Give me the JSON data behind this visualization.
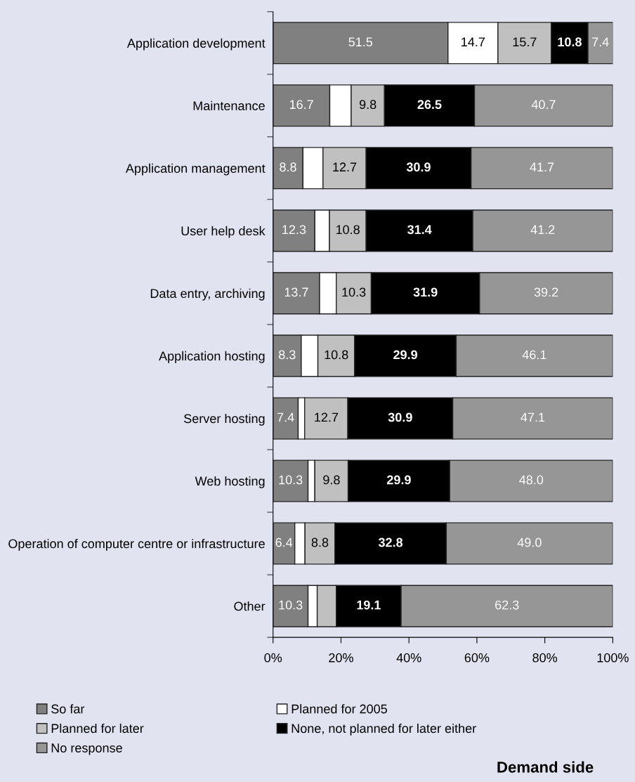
{
  "chart_data": {
    "type": "bar",
    "orientation": "horizontal",
    "stacked": true,
    "categories": [
      "Application development",
      "Maintenance",
      "Application management",
      "User help desk",
      "Data entry, archiving",
      "Application hosting",
      "Server hosting",
      "Web hosting",
      "Operation of computer centre or infrastructure",
      "Other"
    ],
    "series": [
      {
        "name": "So far",
        "color": "#808080",
        "values": [
          51.5,
          16.7,
          8.8,
          12.3,
          13.7,
          8.3,
          7.4,
          10.3,
          6.4,
          10.3
        ],
        "value_labels": [
          "51.5",
          "16.7",
          "8.8",
          "12.3",
          "13.7",
          "8.3",
          "7.4",
          "10.3",
          "6.4",
          "10.3"
        ]
      },
      {
        "name": "Planned for 2005",
        "color": "#ffffff",
        "values": [
          14.7,
          6.3,
          5.9,
          4.3,
          4.9,
          4.9,
          1.9,
          2.0,
          3.0,
          2.7
        ],
        "value_labels": [
          "14.7",
          null,
          null,
          null,
          null,
          null,
          null,
          null,
          null,
          null
        ]
      },
      {
        "name": "Planned for later",
        "color": "#c0c0c0",
        "values": [
          15.7,
          9.8,
          12.7,
          10.8,
          10.3,
          10.8,
          12.7,
          9.8,
          8.8,
          5.6
        ],
        "value_labels": [
          "15.7",
          "9.8",
          "12.7",
          "10.8",
          "10.3",
          "10.8",
          "12.7",
          "9.8",
          "8.8",
          null
        ]
      },
      {
        "name": "None, not planned for later either",
        "color": "#000000",
        "values": [
          10.8,
          26.5,
          30.9,
          31.4,
          31.9,
          29.9,
          30.9,
          29.9,
          32.8,
          19.1
        ],
        "value_labels": [
          "10.8",
          "26.5",
          "30.9",
          "31.4",
          "31.9",
          "29.9",
          "30.9",
          "29.9",
          "32.8",
          "19.1"
        ]
      },
      {
        "name": "No response",
        "color": "#969696",
        "values": [
          7.4,
          40.7,
          41.7,
          41.2,
          39.2,
          46.1,
          47.1,
          48.0,
          49.0,
          62.3
        ],
        "value_labels": [
          "7.4",
          "40.7",
          "41.7",
          "41.2",
          "39.2",
          "46.1",
          "47.1",
          "48.0",
          "49.0",
          "62.3"
        ]
      }
    ],
    "xlim": [
      0,
      100
    ],
    "xticks": [
      {
        "value": 0,
        "label": "0%"
      },
      {
        "value": 20,
        "label": "20%"
      },
      {
        "value": 40,
        "label": "40%"
      },
      {
        "value": 60,
        "label": "60%"
      },
      {
        "value": 80,
        "label": "80%"
      },
      {
        "value": 100,
        "label": "100%"
      }
    ],
    "grid": false,
    "legend": "bottom",
    "annotations": [
      "Demand side"
    ]
  }
}
